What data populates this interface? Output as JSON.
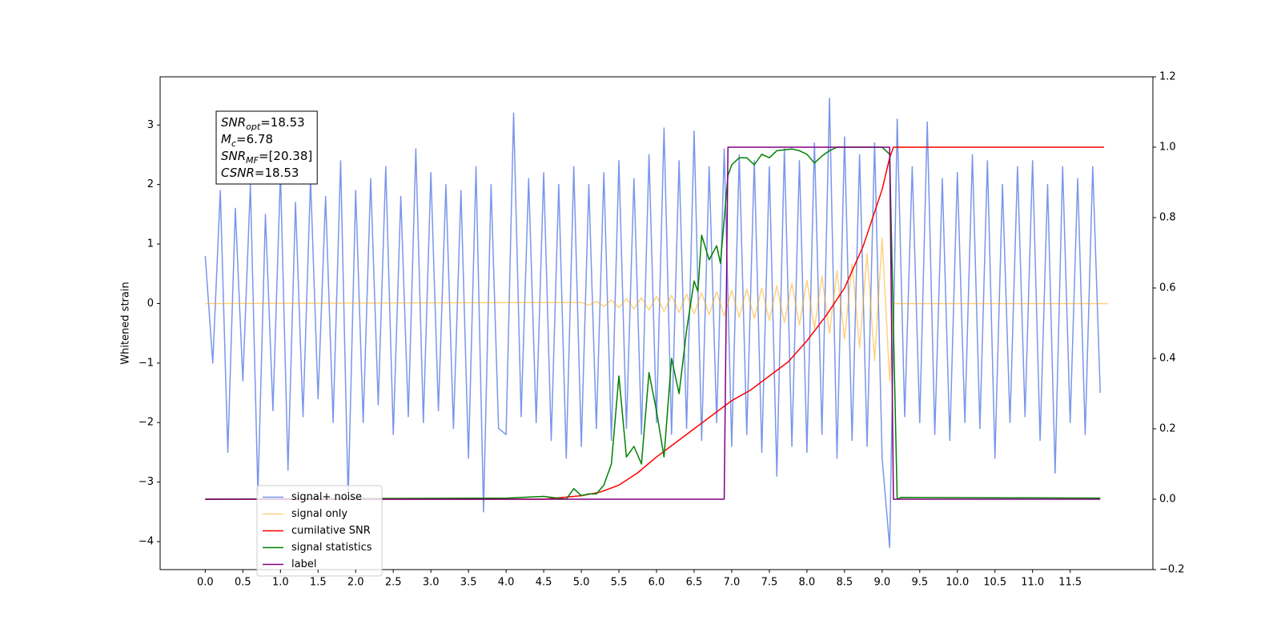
{
  "chart_data": {
    "type": "line",
    "y_label": "Whitened strain",
    "xlim": [
      -0.6,
      12.6
    ],
    "ylim": [
      -4.47,
      3.81
    ],
    "y2lim": [
      -0.2,
      1.2
    ],
    "xticks": [
      {
        "value": 0,
        "label": "0.0"
      },
      0.5,
      {
        "value": 1,
        "label": "1.0"
      },
      1.5,
      {
        "value": 2,
        "label": "2.0"
      },
      2.5,
      {
        "value": 3,
        "label": "3.0"
      },
      3.5,
      {
        "value": 4,
        "label": "4.0"
      },
      4.5,
      {
        "value": 5,
        "label": "5.0"
      },
      5.5,
      {
        "value": 6,
        "label": "6.0"
      },
      6.5,
      {
        "value": 7,
        "label": "7.0"
      },
      7.5,
      {
        "value": 8,
        "label": "8.0"
      },
      8.5,
      {
        "value": 9,
        "label": "9.0"
      },
      9.5,
      {
        "value": 10,
        "label": "10.0"
      },
      10.5,
      {
        "value": 11,
        "label": "11.0"
      },
      11.5
    ],
    "yticks": [
      {
        "value": -4,
        "label": "−4"
      },
      {
        "value": -3,
        "label": "−3"
      },
      {
        "value": -2,
        "label": "−2"
      },
      {
        "value": -1,
        "label": "−1"
      },
      0,
      1,
      2,
      3
    ],
    "y2ticks": [
      {
        "value": -0.2,
        "label": "−0.2"
      },
      {
        "value": 0,
        "label": "0.0"
      },
      0.2,
      0.4,
      0.6,
      0.8,
      {
        "value": 1,
        "label": "1.0"
      },
      1.2
    ],
    "legend": "lower left",
    "annotation": [
      {
        "var": "SNR",
        "sub": "opt",
        "text": "=18.53"
      },
      {
        "var": "M",
        "sub": "c",
        "text": "=6.78"
      },
      {
        "var": "SNR",
        "sub": "MF",
        "text": "=[20.38]"
      },
      {
        "var": "CSNR",
        "text": "=18.53"
      }
    ],
    "series": [
      {
        "name": "signal+ noise",
        "color": "#4169e1",
        "alpha": 0.7,
        "x": [
          0,
          0.1,
          0.2,
          0.3,
          0.4,
          0.5,
          0.6,
          0.7,
          0.8,
          0.9,
          1,
          1.1,
          1.2,
          1.3,
          1.4,
          1.5,
          1.6,
          1.7,
          1.8,
          1.9,
          2,
          2.1,
          2.2,
          2.3,
          2.4,
          2.5,
          2.6,
          2.7,
          2.8,
          2.9,
          3,
          3.1,
          3.2,
          3.3,
          3.4,
          3.5,
          3.6,
          3.7,
          3.8,
          3.9,
          4,
          4.1,
          4.2,
          4.3,
          4.4,
          4.5,
          4.6,
          4.7,
          4.8,
          4.9,
          5,
          5.1,
          5.2,
          5.3,
          5.4,
          5.5,
          5.6,
          5.7,
          5.8,
          5.9,
          6,
          6.1,
          6.2,
          6.3,
          6.4,
          6.5,
          6.6,
          6.7,
          6.8,
          6.9,
          7,
          7.1,
          7.2,
          7.3,
          7.4,
          7.5,
          7.6,
          7.7,
          7.8,
          7.9,
          8,
          8.1,
          8.2,
          8.3,
          8.4,
          8.5,
          8.6,
          8.7,
          8.8,
          8.9,
          9,
          9.1,
          9.2,
          9.3,
          9.4,
          9.5,
          9.6,
          9.7,
          9.8,
          9.9,
          10,
          10.1,
          10.2,
          10.3,
          10.4,
          10.5,
          10.6,
          10.7,
          10.8,
          10.9,
          11,
          11.1,
          11.2,
          11.3,
          11.4,
          11.5,
          11.6,
          11.7,
          11.8,
          11.9
        ],
        "values": [
          0.8,
          -1.0,
          1.9,
          -2.5,
          1.6,
          -1.3,
          2.0,
          -3.2,
          1.5,
          -1.8,
          2.2,
          -2.8,
          1.7,
          -1.9,
          2.1,
          -1.6,
          1.8,
          -2.0,
          2.4,
          -3.3,
          1.9,
          -2.0,
          2.1,
          -1.7,
          2.3,
          -2.2,
          1.8,
          -1.9,
          2.6,
          -2.0,
          2.2,
          -1.8,
          2.0,
          -2.1,
          1.9,
          -2.6,
          2.3,
          -3.5,
          2.0,
          -2.1,
          -2.2,
          3.2,
          -1.9,
          2.1,
          -2.0,
          2.2,
          -2.3,
          2.0,
          -2.6,
          2.3,
          -2.4,
          2.0,
          -2.1,
          2.2,
          -2.3,
          2.4,
          -2.1,
          2.1,
          -2.2,
          2.5,
          -2.0,
          2.95,
          -2.2,
          2.4,
          -2.1,
          2.9,
          -2.3,
          2.3,
          -2.0,
          2.6,
          -2.4,
          2.5,
          -2.2,
          2.4,
          -2.5,
          2.3,
          -2.9,
          2.6,
          -2.4,
          2.4,
          -2.5,
          2.7,
          -2.2,
          3.45,
          -2.6,
          2.8,
          -2.3,
          2.5,
          -2.4,
          2.7,
          -2.6,
          -4.1,
          3.1,
          -1.9,
          2.3,
          -2.0,
          3.05,
          -2.2,
          2.1,
          -2.3,
          2.2,
          -2.0,
          2.5,
          -2.1,
          2.4,
          -2.6,
          2.0,
          -2.0,
          2.3,
          -1.9,
          2.4,
          -2.3,
          2.0,
          -2.85,
          2.3,
          -2.0,
          2.1,
          -2.2,
          2.3,
          -1.5
        ]
      },
      {
        "name": "signal only",
        "color": "#ffa500",
        "alpha": 0.5,
        "x": [
          0,
          5,
          5.1,
          5.2,
          5.3,
          5.4,
          5.5,
          5.6,
          5.7,
          5.8,
          5.9,
          6,
          6.1,
          6.2,
          6.3,
          6.4,
          6.5,
          6.6,
          6.7,
          6.8,
          6.9,
          7,
          7.1,
          7.2,
          7.3,
          7.4,
          7.5,
          7.6,
          7.7,
          7.8,
          7.9,
          8,
          8.1,
          8.2,
          8.3,
          8.4,
          8.5,
          8.6,
          8.7,
          8.8,
          8.9,
          9,
          9.1,
          9.15,
          12
        ],
        "values": [
          0,
          0.02,
          -0.03,
          0.04,
          -0.05,
          0.06,
          -0.07,
          0.08,
          -0.09,
          0.1,
          -0.11,
          0.12,
          -0.13,
          0.14,
          -0.15,
          0.16,
          -0.17,
          0.18,
          -0.19,
          0.2,
          -0.21,
          0.22,
          -0.23,
          0.24,
          -0.25,
          0.26,
          -0.28,
          0.3,
          -0.32,
          0.34,
          -0.36,
          0.39,
          -0.42,
          0.46,
          -0.5,
          0.55,
          -0.6,
          0.66,
          -0.74,
          0.84,
          -0.96,
          1.1,
          -1.3,
          0,
          0
        ]
      },
      {
        "name": "cumilative SNR",
        "color": "#ff0000",
        "alpha": 1,
        "axis": "y2",
        "x": [
          0,
          4.5,
          5,
          5.25,
          5.5,
          5.75,
          6,
          6.25,
          6.5,
          6.75,
          7,
          7.25,
          7.5,
          7.75,
          8,
          8.25,
          8.5,
          8.75,
          9,
          9.1,
          9.15,
          11.95
        ],
        "values": [
          0,
          0,
          0.01,
          0.02,
          0.04,
          0.075,
          0.12,
          0.16,
          0.2,
          0.24,
          0.28,
          0.31,
          0.35,
          0.39,
          0.45,
          0.52,
          0.6,
          0.72,
          0.88,
          0.97,
          1.0,
          1.0
        ]
      },
      {
        "name": "signal statistics",
        "color": "#008000",
        "alpha": 1,
        "axis": "y2",
        "x": [
          0,
          2,
          4,
          4.5,
          4.8,
          4.9,
          5,
          5.1,
          5.2,
          5.3,
          5.4,
          5.5,
          5.6,
          5.7,
          5.8,
          5.9,
          6,
          6.1,
          6.2,
          6.3,
          6.4,
          6.5,
          6.55,
          6.6,
          6.7,
          6.8,
          6.85,
          6.95,
          7,
          7.1,
          7.2,
          7.3,
          7.4,
          7.5,
          7.6,
          7.8,
          7.9,
          8,
          8.1,
          8.2,
          8.3,
          8.4,
          9,
          9.05,
          9.1,
          9.2,
          9.25,
          11.9
        ],
        "values": [
          0,
          0.002,
          0.003,
          0.008,
          0.0,
          0.03,
          0.01,
          0.015,
          0.015,
          0.04,
          0.1,
          0.35,
          0.12,
          0.15,
          0.1,
          0.36,
          0.25,
          0.12,
          0.4,
          0.3,
          0.48,
          0.62,
          0.59,
          0.75,
          0.68,
          0.72,
          0.67,
          0.92,
          0.95,
          0.97,
          0.97,
          0.95,
          0.98,
          0.97,
          0.99,
          0.995,
          0.99,
          0.98,
          0.955,
          0.975,
          0.99,
          1.0,
          1.0,
          0.99,
          0.98,
          0.0,
          0.005,
          0.003
        ]
      },
      {
        "name": "label",
        "color": "#800080",
        "alpha": 1,
        "axis": "y2",
        "x": [
          0,
          6.9,
          6.95,
          9.1,
          9.15,
          11.9
        ],
        "values": [
          0,
          0,
          1,
          1,
          0,
          0
        ]
      }
    ]
  }
}
